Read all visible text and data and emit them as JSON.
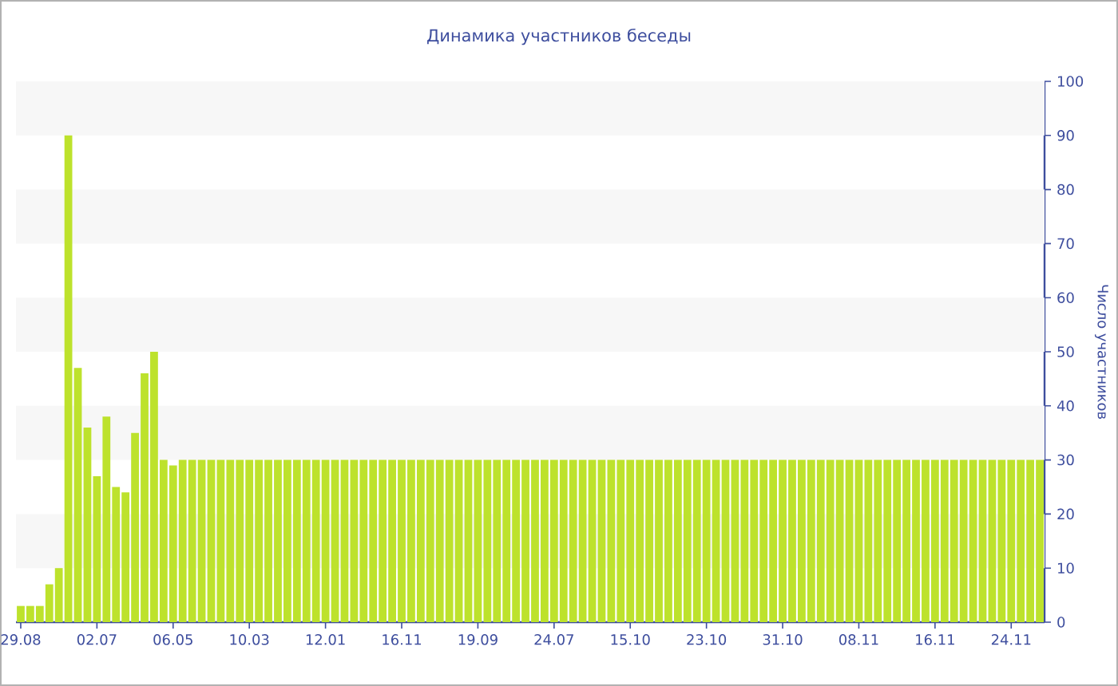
{
  "chart_data": {
    "type": "bar",
    "title": "Динамика участников беседы",
    "ylabel": "Число участников",
    "categories": [
      "29.08",
      null,
      null,
      null,
      null,
      null,
      null,
      null,
      "02.07",
      null,
      null,
      null,
      null,
      null,
      null,
      null,
      "06.05",
      null,
      null,
      null,
      null,
      null,
      null,
      null,
      "10.03",
      null,
      null,
      null,
      null,
      null,
      null,
      null,
      "12.01",
      null,
      null,
      null,
      null,
      null,
      null,
      null,
      "16.11",
      null,
      null,
      null,
      null,
      null,
      null,
      null,
      "19.09",
      null,
      null,
      null,
      null,
      null,
      null,
      null,
      "24.07",
      null,
      null,
      null,
      null,
      null,
      null,
      null,
      "15.10",
      null,
      null,
      null,
      null,
      null,
      null,
      null,
      "23.10",
      null,
      null,
      null,
      null,
      null,
      null,
      null,
      "31.10",
      null,
      null,
      null,
      null,
      null,
      null,
      null,
      "08.11",
      null,
      null,
      null,
      null,
      null,
      null,
      null,
      "16.11",
      null,
      null,
      null,
      null,
      null,
      null,
      null,
      "24.11",
      null,
      null,
      null
    ],
    "values": [
      3,
      3,
      3,
      7,
      10,
      90,
      47,
      36,
      27,
      38,
      25,
      24,
      35,
      46,
      50,
      30,
      29,
      30,
      30,
      30,
      30,
      30,
      30,
      30,
      30,
      30,
      30,
      30,
      30,
      30,
      30,
      30,
      30,
      30,
      30,
      30,
      30,
      30,
      30,
      30,
      30,
      30,
      30,
      30,
      30,
      30,
      30,
      30,
      30,
      30,
      30,
      30,
      30,
      30,
      30,
      30,
      30,
      30,
      30,
      30,
      30,
      30,
      30,
      30,
      30,
      30,
      30,
      30,
      30,
      30,
      30,
      30,
      30,
      30,
      30,
      30,
      30,
      30,
      30,
      30,
      30,
      30,
      30,
      30,
      30,
      30,
      30,
      30,
      30,
      30,
      30,
      30,
      30,
      30,
      30,
      30,
      30,
      30,
      30,
      30,
      30,
      30,
      30,
      30,
      30,
      30,
      30,
      30
    ],
    "color": "#bde22c",
    "ylim": [
      0,
      100
    ],
    "yticks": [
      0,
      10,
      20,
      30,
      40,
      50,
      60,
      70,
      80,
      90,
      100
    ],
    "bands": [
      {
        "axis": "y",
        "from": 10,
        "to": 20,
        "color": "#f7f7f7"
      },
      {
        "axis": "y",
        "from": 30,
        "to": 40,
        "color": "#f7f7f7"
      },
      {
        "axis": "y",
        "from": 50,
        "to": 60,
        "color": "#f7f7f7"
      },
      {
        "axis": "y",
        "from": 70,
        "to": 80,
        "color": "#f7f7f7"
      },
      {
        "axis": "y",
        "from": 90,
        "to": 100,
        "color": "#f7f7f7"
      }
    ]
  }
}
